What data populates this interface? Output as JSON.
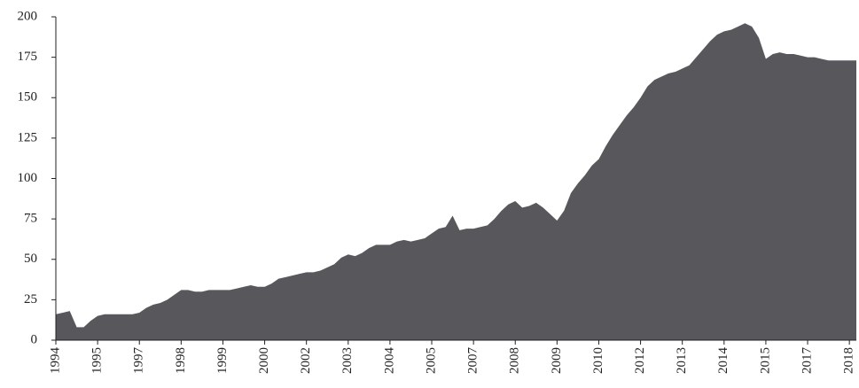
{
  "chart_data": {
    "type": "area",
    "color": "#58585c",
    "grid": false,
    "categories": [
      "1994",
      null,
      null,
      null,
      null,
      null,
      "1995",
      null,
      null,
      null,
      null,
      null,
      "1997",
      null,
      null,
      null,
      null,
      null,
      "1998",
      null,
      null,
      null,
      null,
      null,
      "1999",
      null,
      null,
      null,
      null,
      null,
      "2000",
      null,
      null,
      null,
      null,
      null,
      "2002",
      null,
      null,
      null,
      null,
      null,
      "2003",
      null,
      null,
      null,
      null,
      null,
      "2004",
      null,
      null,
      null,
      null,
      null,
      "2005",
      null,
      null,
      null,
      null,
      null,
      "2007",
      null,
      null,
      null,
      null,
      null,
      "2008",
      null,
      null,
      null,
      null,
      null,
      "2009",
      null,
      null,
      null,
      null,
      null,
      "2010",
      null,
      null,
      null,
      null,
      null,
      "2012",
      null,
      null,
      null,
      null,
      null,
      "2013",
      null,
      null,
      null,
      null,
      null,
      "2014",
      null,
      null,
      null,
      null,
      null,
      "2015",
      null,
      null,
      null,
      null,
      null,
      "2017",
      null,
      null,
      null,
      null,
      null,
      "2018",
      null
    ],
    "values": [
      16,
      17,
      18,
      8,
      8,
      12,
      15,
      16,
      16,
      16,
      16,
      16,
      17,
      20,
      22,
      23,
      25,
      28,
      31,
      31,
      30,
      30,
      31,
      31,
      31,
      31,
      32,
      33,
      34,
      33,
      33,
      35,
      38,
      39,
      40,
      41,
      42,
      42,
      43,
      45,
      47,
      51,
      53,
      52,
      54,
      57,
      59,
      59,
      59,
      61,
      62,
      61,
      62,
      63,
      66,
      69,
      70,
      77,
      68,
      69,
      69,
      70,
      71,
      75,
      80,
      84,
      86,
      82,
      83,
      85,
      82,
      78,
      74,
      80,
      91,
      97,
      102,
      108,
      112,
      120,
      127,
      133,
      139,
      144,
      150,
      157,
      161,
      163,
      165,
      166,
      168,
      170,
      175,
      180,
      185,
      189,
      191,
      192,
      194,
      196,
      194,
      187,
      174,
      177,
      178,
      177,
      177,
      176,
      175,
      175,
      174,
      173,
      173,
      173,
      173,
      173
    ],
    "ylim": [
      0,
      200
    ],
    "yticks": [
      0,
      25,
      50,
      75,
      100,
      125,
      150,
      175,
      200
    ]
  }
}
